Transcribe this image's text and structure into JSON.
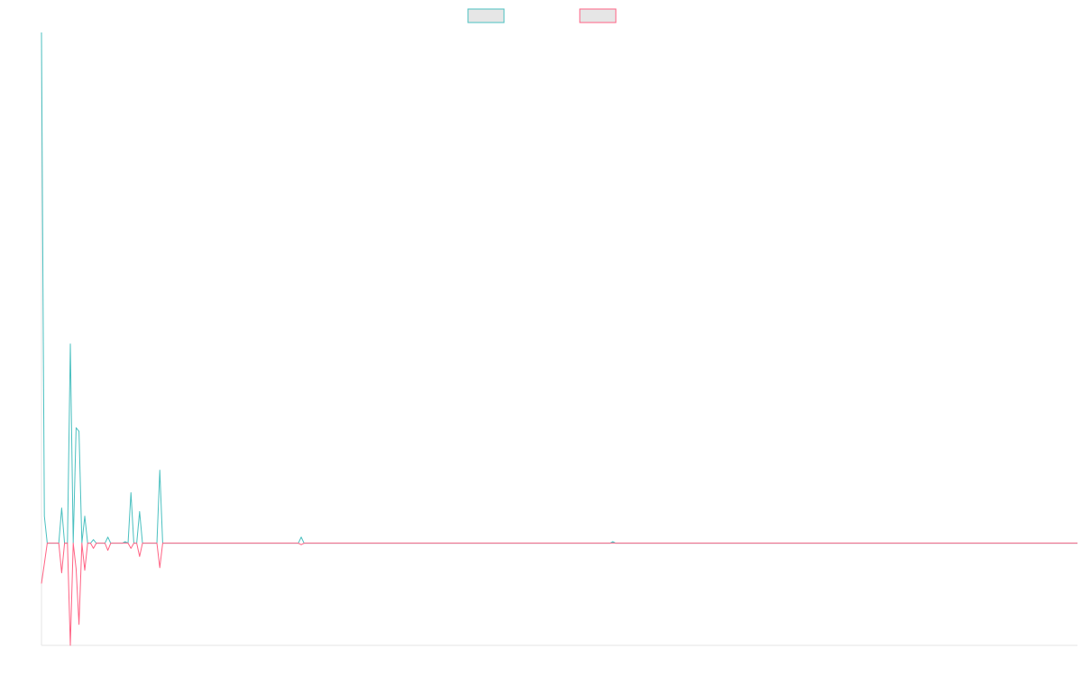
{
  "chart_data": {
    "type": "line",
    "ylim": [
      -20,
      100
    ],
    "legend": "top",
    "series": [
      {
        "color": "#4bc0c0",
        "values": [
          100,
          5.3,
          0,
          0,
          0,
          0,
          0,
          6.9,
          0,
          0,
          39,
          0,
          22.6,
          21.9,
          0,
          5.3,
          0,
          0,
          0.7,
          0,
          0,
          0,
          0,
          1.2,
          0,
          0,
          0,
          0,
          0,
          0.3,
          0,
          9.9,
          0,
          0,
          6.2,
          0,
          0,
          0,
          0,
          0,
          0,
          14.3,
          0,
          0,
          0,
          0,
          0,
          0,
          0,
          0,
          0,
          0,
          0,
          0,
          0,
          0,
          0,
          0,
          0,
          0,
          0,
          0,
          0,
          0,
          0,
          0,
          0,
          0,
          0,
          0,
          0,
          0,
          0,
          0,
          0,
          0,
          0,
          0,
          0,
          0,
          0,
          0,
          0,
          0,
          0,
          0,
          0,
          0,
          0,
          0,
          1.2,
          0,
          0,
          0,
          0,
          0,
          0,
          0,
          0,
          0,
          0,
          0,
          0,
          0,
          0,
          0,
          0,
          0,
          0,
          0,
          0,
          0,
          0,
          0,
          0,
          0,
          0,
          0,
          0,
          0,
          0,
          0,
          0,
          0,
          0,
          0,
          0,
          0,
          0,
          0,
          0,
          0,
          0,
          0,
          0,
          0,
          0,
          0,
          0,
          0,
          0,
          0,
          0,
          0,
          0,
          0,
          0,
          0,
          0,
          0,
          0,
          0,
          0,
          0,
          0,
          0,
          0,
          0,
          0,
          0,
          0,
          0,
          0,
          0,
          0,
          0,
          0,
          0,
          0,
          0,
          0,
          0,
          0,
          0,
          0,
          0,
          0,
          0,
          0,
          0,
          0,
          0,
          0,
          0,
          0,
          0,
          0,
          0,
          0,
          0,
          0,
          0,
          0,
          0,
          0,
          0,
          0,
          0,
          0.3,
          0,
          0,
          0,
          0,
          0,
          0,
          0,
          0,
          0,
          0,
          0,
          0,
          0,
          0,
          0,
          0,
          0,
          0,
          0,
          0,
          0,
          0,
          0,
          0,
          0,
          0,
          0,
          0,
          0,
          0,
          0,
          0,
          0,
          0,
          0,
          0,
          0,
          0,
          0,
          0,
          0,
          0,
          0,
          0,
          0,
          0,
          0,
          0,
          0,
          0,
          0,
          0,
          0,
          0,
          0,
          0,
          0,
          0,
          0,
          0,
          0,
          0,
          0,
          0,
          0,
          0,
          0,
          0,
          0,
          0,
          0,
          0,
          0,
          0,
          0,
          0,
          0,
          0,
          0,
          0,
          0,
          0,
          0,
          0,
          0,
          0,
          0,
          0,
          0,
          0,
          0,
          0,
          0,
          0,
          0,
          0,
          0,
          0,
          0,
          0,
          0,
          0,
          0,
          0,
          0,
          0,
          0,
          0,
          0,
          0,
          0,
          0,
          0,
          0,
          0,
          0,
          0,
          0,
          0,
          0,
          0,
          0,
          0,
          0,
          0,
          0,
          0,
          0,
          0,
          0,
          0,
          0,
          0,
          0,
          0,
          0,
          0,
          0,
          0,
          0,
          0,
          0,
          0,
          0,
          0,
          0,
          0,
          0,
          0,
          0,
          0,
          0,
          0,
          0,
          0,
          0,
          0,
          0,
          0,
          0,
          0
        ]
      },
      {
        "color": "#ff6384",
        "values": [
          -7.9,
          -4,
          0,
          0,
          0,
          0,
          0,
          -5.8,
          0,
          0,
          -20,
          0,
          -5,
          -15.9,
          0,
          -5.3,
          0,
          0,
          -1,
          0,
          0,
          0,
          0,
          -1.4,
          0,
          0,
          0,
          0,
          0,
          0,
          0,
          -1,
          0,
          0,
          -2.6,
          0,
          0,
          0,
          0,
          0,
          0,
          -4.8,
          0,
          0,
          0,
          0,
          0,
          0,
          0,
          0,
          0,
          0,
          0,
          0,
          0,
          0,
          0,
          0,
          0,
          0,
          0,
          0,
          0,
          0,
          0,
          0,
          0,
          0,
          0,
          0,
          0,
          0,
          0,
          0,
          0,
          0,
          0,
          0,
          0,
          0,
          0,
          0,
          0,
          0,
          0,
          0,
          0,
          0,
          0,
          0,
          -0.3,
          0,
          0,
          0,
          0,
          0,
          0,
          0,
          0,
          0,
          0,
          0,
          0,
          0,
          0,
          0,
          0,
          0,
          0,
          0,
          0,
          0,
          0,
          0,
          0,
          0,
          0,
          0,
          0,
          0,
          0,
          0,
          0,
          0,
          0,
          0,
          0,
          0,
          0,
          0,
          0,
          0,
          0,
          0,
          0,
          0,
          0,
          0,
          0,
          0,
          0,
          0,
          0,
          0,
          0,
          0,
          0,
          0,
          0,
          0,
          0,
          0,
          0,
          0,
          0,
          0,
          0,
          0,
          0,
          0,
          0,
          0,
          0,
          0,
          0,
          0,
          0,
          0,
          0,
          0,
          0,
          0,
          0,
          0,
          0,
          0,
          0,
          0,
          0,
          0,
          0,
          0,
          0,
          0,
          0,
          0,
          0,
          0,
          0,
          0,
          0,
          0,
          0,
          0,
          0,
          0,
          0,
          0,
          0,
          0,
          0,
          0,
          0,
          0,
          0,
          0,
          0,
          0,
          0,
          0,
          0,
          0,
          0,
          0,
          0,
          0,
          0,
          0,
          0,
          0,
          0,
          0,
          0,
          0,
          0,
          0,
          0,
          0,
          0,
          0,
          0,
          0,
          0,
          0,
          0,
          0,
          0,
          0,
          0,
          0,
          0,
          0,
          0,
          0,
          0,
          0,
          0,
          0,
          0,
          0,
          0,
          0,
          0,
          0,
          0,
          0,
          0,
          0,
          0,
          0,
          0,
          0,
          0,
          0,
          0,
          0,
          0,
          0,
          0,
          0,
          0,
          0,
          0,
          0,
          0,
          0,
          0,
          0,
          0,
          0,
          0,
          0,
          0,
          0,
          0,
          0,
          0,
          0,
          0,
          0,
          0,
          0,
          0,
          0,
          0,
          0,
          0,
          0,
          0,
          0,
          0,
          0,
          0,
          0,
          0,
          0,
          0,
          0,
          0,
          0,
          0,
          0,
          0,
          0,
          0,
          0,
          0,
          0,
          0,
          0,
          0,
          0,
          0,
          0,
          0,
          0,
          0,
          0,
          0,
          0,
          0,
          0,
          0,
          0,
          0,
          0,
          0,
          0,
          0,
          0,
          0,
          0,
          0,
          0,
          0,
          0,
          0,
          0,
          0,
          0,
          0,
          0,
          0,
          0,
          0,
          0,
          0,
          0,
          0,
          0
        ]
      }
    ]
  }
}
